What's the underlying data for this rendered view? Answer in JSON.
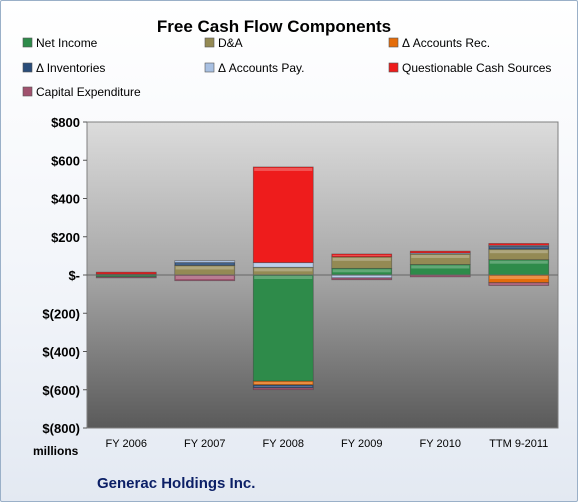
{
  "chart_data": {
    "type": "bar",
    "stacked": true,
    "title": "Free Cash Flow Components",
    "categories": [
      "FY 2006",
      "FY 2007",
      "FY 2008",
      "FY 2009",
      "FY 2010",
      "TTM 9-2011"
    ],
    "ylim": [
      -800,
      800
    ],
    "yticks": [
      800,
      600,
      400,
      200,
      0,
      -200,
      -400,
      -600,
      -800
    ],
    "ytick_labels": [
      "$800",
      "$600",
      "$400",
      "$200",
      "$-",
      "$(200)",
      "$(400)",
      "$(600)",
      "$(800)"
    ],
    "ylabel": "",
    "xlabel": "",
    "units_label": "millions",
    "grid": false,
    "legend_position": "top",
    "series": [
      {
        "name": "Net Income",
        "color": "#2e8b4a",
        "values": [
          -10,
          0,
          -555,
          35,
          55,
          80
        ]
      },
      {
        "name": "D&A",
        "color": "#948a54",
        "values": [
          5,
          50,
          40,
          60,
          55,
          55
        ]
      },
      {
        "name": "Δ Accounts Rec.",
        "color": "#e46c0a",
        "values": [
          0,
          0,
          -20,
          0,
          0,
          -40
        ]
      },
      {
        "name": "Δ Inventories",
        "color": "#2a4d7a",
        "values": [
          0,
          15,
          -15,
          0,
          0,
          15
        ]
      },
      {
        "name": "Δ Accounts Pay.",
        "color": "#a8c0e2",
        "values": [
          0,
          10,
          25,
          -15,
          5,
          5
        ]
      },
      {
        "name": "Questionable Cash Sources",
        "color": "#ee1c1c",
        "values": [
          10,
          0,
          500,
          15,
          10,
          10
        ]
      },
      {
        "name": "Capital Expenditure",
        "color": "#a0526e",
        "values": [
          -5,
          -30,
          -10,
          -10,
          -10,
          -15
        ]
      }
    ]
  },
  "footer": {
    "company": "Generac Holdings Inc."
  }
}
